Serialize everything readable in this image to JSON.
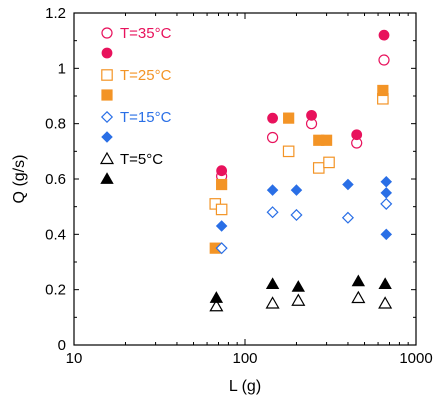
{
  "chart_data": {
    "type": "scatter",
    "xlabel": "L (g)",
    "ylabel": "Q (g/s)",
    "xscale": "log",
    "xlim": [
      10,
      1000
    ],
    "ylim": [
      0,
      1.2
    ],
    "x_ticks": [
      "10",
      "100",
      "1000"
    ],
    "y_ticks": [
      "0",
      "0.2",
      "0.4",
      "0.6",
      "0.8",
      "1",
      "1.2"
    ],
    "grid": false,
    "legend_position": "top-left",
    "series": [
      {
        "name": "T=35°C",
        "color": "#e8125c",
        "marker": "circle",
        "legend_marker": "open-and-filled",
        "open": {
          "x": [
            73,
            145,
            245,
            450,
            650
          ],
          "y": [
            0.61,
            0.75,
            0.8,
            0.73,
            1.03
          ]
        },
        "filled": {
          "x": [
            73,
            145,
            245,
            450,
            650
          ],
          "y": [
            0.63,
            0.82,
            0.83,
            0.76,
            1.12
          ]
        }
      },
      {
        "name": "T=25°C",
        "color": "#f39426",
        "marker": "square",
        "legend_marker": "open-and-filled",
        "open": {
          "x": [
            67,
            73,
            180,
            270,
            310,
            640
          ],
          "y": [
            0.51,
            0.49,
            0.7,
            0.64,
            0.66,
            0.89
          ]
        },
        "filled": {
          "x": [
            67,
            73,
            180,
            270,
            300,
            640
          ],
          "y": [
            0.35,
            0.58,
            0.82,
            0.74,
            0.74,
            0.92
          ]
        }
      },
      {
        "name": "T=15°C",
        "color": "#2a6fe6",
        "marker": "diamond",
        "legend_marker": "open-and-filled",
        "open": {
          "x": [
            73,
            145,
            200,
            400,
            670
          ],
          "y": [
            0.35,
            0.48,
            0.47,
            0.46,
            0.51
          ]
        },
        "filled": {
          "x": [
            73,
            145,
            200,
            400,
            670,
            670,
            670
          ],
          "y": [
            0.43,
            0.56,
            0.56,
            0.58,
            0.59,
            0.55,
            0.4
          ]
        }
      },
      {
        "name": "T=5°C",
        "color": "#000000",
        "marker": "triangle",
        "legend_marker": "open-and-filled",
        "open": {
          "x": [
            68,
            145,
            205,
            460,
            660
          ],
          "y": [
            0.14,
            0.15,
            0.16,
            0.17,
            0.15
          ]
        },
        "filled": {
          "x": [
            68,
            145,
            205,
            460,
            660
          ],
          "y": [
            0.17,
            0.22,
            0.21,
            0.23,
            0.22
          ]
        }
      }
    ]
  }
}
